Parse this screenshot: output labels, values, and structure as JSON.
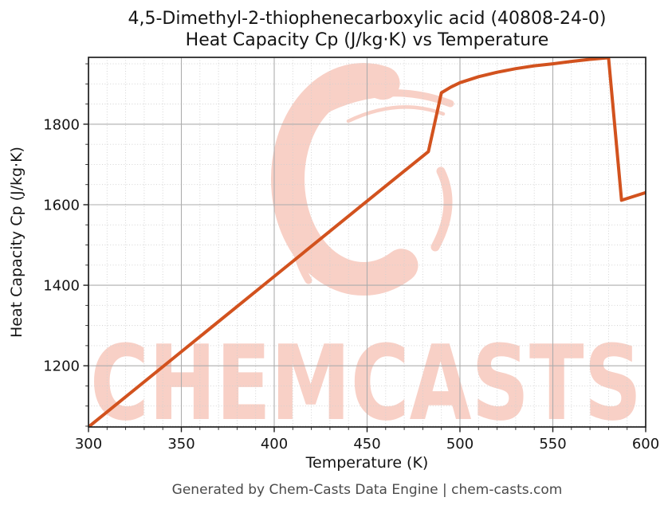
{
  "figure": {
    "title_line1": "4,5-Dimethyl-2-thiophenecarboxylic acid (40808-24-0)",
    "title_line2": "Heat Capacity Cp (J/kg·K) vs Temperature",
    "footer": "Generated by Chem-Casts Data Engine | chem-casts.com"
  },
  "watermark": {
    "text": "CHEMCASTS",
    "color": "#f8d0c6"
  },
  "chart_data": {
    "type": "line",
    "title": "4,5-Dimethyl-2-thiophenecarboxylic acid (40808-24-0) Heat Capacity Cp (J/kg·K) vs Temperature",
    "xlabel": "Temperature (K)",
    "ylabel": "Heat Capacity Cp (J/kg·K)",
    "xlim": [
      300,
      600
    ],
    "ylim": [
      1048,
      1966
    ],
    "x_major_ticks": [
      300,
      350,
      400,
      450,
      500,
      550,
      600
    ],
    "x_minor_step": 10,
    "y_major_ticks": [
      1200,
      1400,
      1600,
      1800
    ],
    "y_minor_step": 50,
    "grid": true,
    "legend_position": "none",
    "line_color": "#d2521e",
    "grid_major_color": "#adadad",
    "grid_minor_color": "#cfcfcf",
    "axis_color": "#1f1f1f",
    "series": [
      {
        "name": "Heat Capacity Cp",
        "points": [
          [
            300,
            1048
          ],
          [
            350,
            1235
          ],
          [
            400,
            1422
          ],
          [
            450,
            1609
          ],
          [
            483,
            1732
          ],
          [
            490,
            1878
          ],
          [
            495,
            1892
          ],
          [
            500,
            1903
          ],
          [
            510,
            1918
          ],
          [
            520,
            1929
          ],
          [
            530,
            1938
          ],
          [
            540,
            1945
          ],
          [
            550,
            1950
          ],
          [
            560,
            1956
          ],
          [
            570,
            1961
          ],
          [
            580,
            1965
          ],
          [
            587,
            1611
          ],
          [
            600,
            1630
          ]
        ]
      }
    ]
  }
}
